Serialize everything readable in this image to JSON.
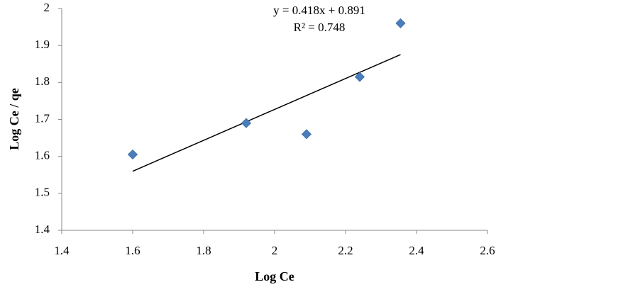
{
  "chart_data": {
    "type": "scatter",
    "x_label": "Log Ce",
    "y_label": "Log Ce / qe",
    "x": [
      1.6,
      1.92,
      2.09,
      2.24,
      2.355
    ],
    "series": [
      {
        "color": "#4a7ebb",
        "values": [
          1.605,
          1.69,
          1.66,
          1.815,
          1.96
        ]
      }
    ],
    "xlim": [
      1.4,
      2.6
    ],
    "xticks": [
      1.4,
      1.6,
      1.8,
      2,
      2.2,
      2.4,
      2.6
    ],
    "ylim": [
      1.4,
      2
    ],
    "yticks": [
      1.4,
      1.5,
      1.6,
      1.7,
      1.8,
      1.9,
      2
    ],
    "grid": false,
    "trendline": {
      "slope": 0.418,
      "intercept": 0.891,
      "r2": 0.748,
      "color": "#000000",
      "equation": "y = 0.418x + 0.891",
      "r2_label": "R² = 0.748"
    }
  }
}
